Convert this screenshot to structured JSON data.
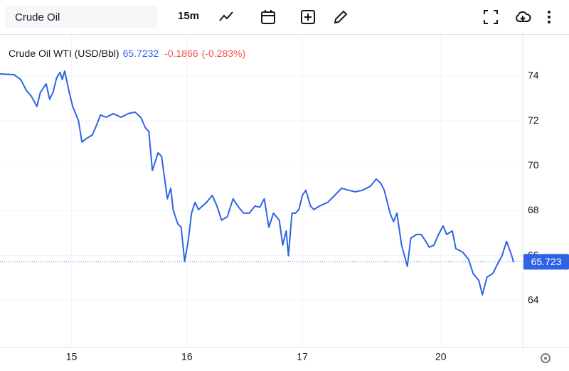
{
  "toolbar": {
    "search": "Crude Oil",
    "interval": "15m"
  },
  "chart_data": {
    "type": "line",
    "legend": {
      "name": "Crude Oil WTI (USD/Bbl)",
      "price": "65.7232",
      "change": "-0.1866",
      "change_pct": "(-0.283%)"
    },
    "last_price_label": "65.723",
    "xlim": [
      0.38,
      4.91
    ],
    "xticks": [
      {
        "value": 1,
        "label": "15"
      },
      {
        "value": 2,
        "label": "16"
      },
      {
        "value": 3,
        "label": "17"
      },
      {
        "value": 4.2,
        "label": "20"
      }
    ],
    "ylim": [
      62,
      75.8
    ],
    "yticks": [
      64,
      66,
      68,
      70,
      72,
      74
    ],
    "grid": true,
    "series": [
      {
        "name": "Crude Oil WTI",
        "color": "#2f63e6",
        "x": [
          0.38,
          0.5,
          0.56,
          0.61,
          0.65,
          0.7,
          0.73,
          0.78,
          0.81,
          0.84,
          0.87,
          0.9,
          0.92,
          0.94,
          0.98,
          1.01,
          1.06,
          1.09,
          1.13,
          1.18,
          1.22,
          1.25,
          1.3,
          1.36,
          1.43,
          1.49,
          1.55,
          1.6,
          1.64,
          1.67,
          1.7,
          1.75,
          1.78,
          1.83,
          1.86,
          1.88,
          1.92,
          1.95,
          1.98,
          2.01,
          2.04,
          2.07,
          2.1,
          2.17,
          2.22,
          2.26,
          2.3,
          2.35,
          2.4,
          2.44,
          2.49,
          2.54,
          2.59,
          2.63,
          2.67,
          2.71,
          2.75,
          2.8,
          2.83,
          2.86,
          2.88,
          2.91,
          2.94,
          2.97,
          3.0,
          3.03,
          3.07,
          3.1,
          3.15,
          3.22,
          3.28,
          3.34,
          3.4,
          3.46,
          3.52,
          3.59,
          3.64,
          3.68,
          3.71,
          3.76,
          3.79,
          3.82,
          3.86,
          3.91,
          3.94,
          3.99,
          4.03,
          4.07,
          4.1,
          4.14,
          4.18,
          4.22,
          4.25,
          4.3,
          4.33,
          4.39,
          4.44,
          4.48,
          4.53,
          4.56,
          4.6,
          4.65,
          4.69,
          4.73,
          4.77,
          4.81,
          4.83
        ],
        "values": [
          74.09,
          74.06,
          73.84,
          73.34,
          73.11,
          72.64,
          73.27,
          73.65,
          72.96,
          73.27,
          73.91,
          74.16,
          73.84,
          74.22,
          73.27,
          72.64,
          72.01,
          71.06,
          71.22,
          71.37,
          71.85,
          72.26,
          72.16,
          72.32,
          72.16,
          72.32,
          72.39,
          72.16,
          71.69,
          71.53,
          69.79,
          70.58,
          70.42,
          68.53,
          69.0,
          68.05,
          67.42,
          67.26,
          65.74,
          66.63,
          67.89,
          68.37,
          68.05,
          68.37,
          68.68,
          68.21,
          67.58,
          67.73,
          68.53,
          68.21,
          67.89,
          67.89,
          68.21,
          68.15,
          68.53,
          67.26,
          67.89,
          67.58,
          66.47,
          67.1,
          65.99,
          67.89,
          67.89,
          68.05,
          68.68,
          68.91,
          68.21,
          68.05,
          68.21,
          68.37,
          68.68,
          69.0,
          68.91,
          68.84,
          68.91,
          69.09,
          69.41,
          69.22,
          68.91,
          67.89,
          67.51,
          67.89,
          66.47,
          65.52,
          66.78,
          66.94,
          66.94,
          66.63,
          66.37,
          66.47,
          66.94,
          67.32,
          66.94,
          67.1,
          66.31,
          66.15,
          65.84,
          65.2,
          64.89,
          64.25,
          65.04,
          65.2,
          65.61,
          65.99,
          66.63,
          66.06,
          65.7232
        ]
      }
    ]
  }
}
